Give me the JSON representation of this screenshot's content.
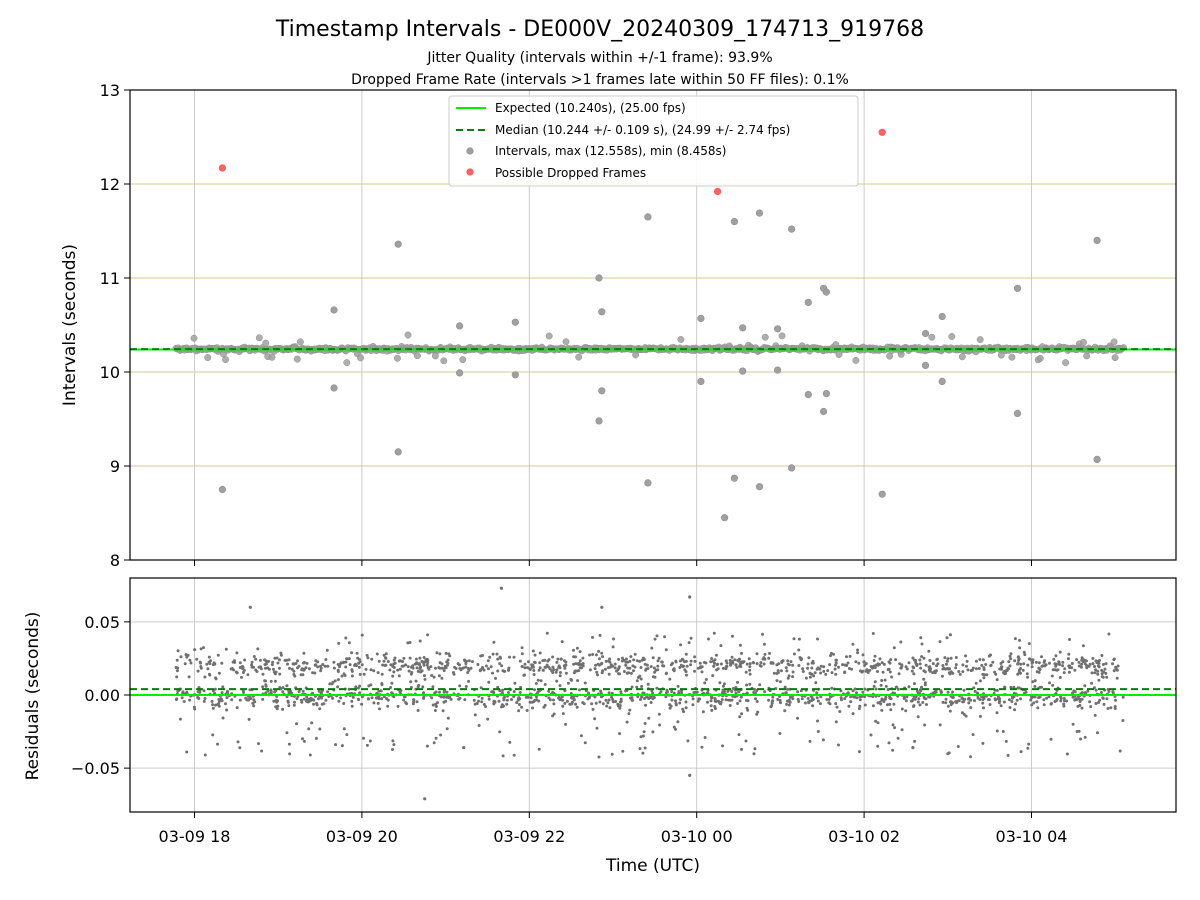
{
  "figure": {
    "title": "Timestamp Intervals - DE000V_20240309_174713_919768",
    "subtitle_1": "Jitter Quality (intervals within +/-1 frame): 93.9%",
    "subtitle_2": "Dropped Frame Rate (intervals >1 frames late within 50 FF files): 0.1%"
  },
  "colors": {
    "expected": "#00ee00",
    "median": "#008000",
    "intervals": "#a0a0a0",
    "dropped": "#ff4d4d",
    "residuals": "#707070",
    "grid_top": "#d8c98a",
    "grid_bottom": "#cccccc"
  },
  "chart_data": [
    {
      "type": "scatter",
      "panel": "intervals",
      "ylabel": "Intervals (seconds)",
      "ylim": [
        8,
        13
      ],
      "yticks": [
        "8",
        "9",
        "10",
        "11",
        "12",
        "13"
      ],
      "grid": true,
      "legend_position": "top-center",
      "legend": {
        "expected": "Expected (10.240s), (25.00 fps)",
        "median": "Median (10.244 +/- 0.109 s), (24.99 +/- 2.74 fps)",
        "intervals": "Intervals, max (12.558s), min (8.458s)",
        "dropped": "Possible Dropped Frames"
      },
      "expected_value": 10.24,
      "median_value": 10.244,
      "x_range_hours": [
        17.78,
        29.1
      ],
      "outliers": [
        {
          "x": "03-09 18:20",
          "y": 8.75
        },
        {
          "x": "03-09 19:40",
          "y": 10.66
        },
        {
          "x": "03-09 19:40",
          "y": 9.83
        },
        {
          "x": "03-09 20:26",
          "y": 11.36
        },
        {
          "x": "03-09 20:26",
          "y": 9.15
        },
        {
          "x": "03-09 21:10",
          "y": 10.49
        },
        {
          "x": "03-09 21:10",
          "y": 9.99
        },
        {
          "x": "03-09 21:50",
          "y": 10.53
        },
        {
          "x": "03-09 21:50",
          "y": 9.97
        },
        {
          "x": "03-09 22:50",
          "y": 11.0
        },
        {
          "x": "03-09 22:50",
          "y": 9.48
        },
        {
          "x": "03-09 22:52",
          "y": 10.64
        },
        {
          "x": "03-09 22:52",
          "y": 9.8
        },
        {
          "x": "03-09 23:25",
          "y": 11.65
        },
        {
          "x": "03-09 23:25",
          "y": 8.82
        },
        {
          "x": "03-10 00:03",
          "y": 10.57
        },
        {
          "x": "03-10 00:03",
          "y": 9.9
        },
        {
          "x": "03-10 00:20",
          "y": 8.45
        },
        {
          "x": "03-10 00:27",
          "y": 11.6
        },
        {
          "x": "03-10 00:27",
          "y": 8.87
        },
        {
          "x": "03-10 00:33",
          "y": 10.47
        },
        {
          "x": "03-10 00:33",
          "y": 10.01
        },
        {
          "x": "03-10 00:45",
          "y": 11.69
        },
        {
          "x": "03-10 00:45",
          "y": 8.78
        },
        {
          "x": "03-10 00:58",
          "y": 10.46
        },
        {
          "x": "03-10 00:58",
          "y": 10.02
        },
        {
          "x": "03-10 01:08",
          "y": 11.52
        },
        {
          "x": "03-10 01:08",
          "y": 8.98
        },
        {
          "x": "03-10 01:20",
          "y": 10.74
        },
        {
          "x": "03-10 01:20",
          "y": 9.76
        },
        {
          "x": "03-10 01:31",
          "y": 10.89
        },
        {
          "x": "03-10 01:31",
          "y": 9.58
        },
        {
          "x": "03-10 01:33",
          "y": 10.85
        },
        {
          "x": "03-10 01:33",
          "y": 9.77
        },
        {
          "x": "03-10 02:13",
          "y": 8.7
        },
        {
          "x": "03-10 02:44",
          "y": 10.41
        },
        {
          "x": "03-10 02:44",
          "y": 10.07
        },
        {
          "x": "03-10 02:56",
          "y": 10.59
        },
        {
          "x": "03-10 02:56",
          "y": 9.9
        },
        {
          "x": "03-10 03:50",
          "y": 10.89
        },
        {
          "x": "03-10 03:50",
          "y": 9.56
        },
        {
          "x": "03-10 04:47",
          "y": 11.4
        },
        {
          "x": "03-10 04:47",
          "y": 9.07
        }
      ],
      "dropped_frames": [
        {
          "x": "03-09 18:20",
          "y": 12.17
        },
        {
          "x": "03-10 00:15",
          "y": 11.92
        },
        {
          "x": "03-10 02:13",
          "y": 12.55
        }
      ]
    },
    {
      "type": "scatter",
      "panel": "residuals",
      "xlabel": "Time (UTC)",
      "ylabel": "Residuals (seconds)",
      "ylim": [
        -0.08,
        0.08
      ],
      "yticks": [
        "−0.05",
        "0.00",
        "0.05"
      ],
      "xticks": [
        "03-09 18",
        "03-09 20",
        "03-09 22",
        "03-10 00",
        "03-10 02",
        "03-10 04"
      ],
      "grid": true,
      "expected_residual": 0.0,
      "median_residual": 0.004,
      "residual_range": [
        -0.071,
        0.073
      ],
      "outliers": [
        {
          "x": "03-09 21:40",
          "y": 0.073
        },
        {
          "x": "03-09 21:13",
          "y": -0.036
        },
        {
          "x": "03-09 20:45",
          "y": -0.071
        },
        {
          "x": "03-09 22:52",
          "y": 0.06
        },
        {
          "x": "03-09 23:55",
          "y": 0.067
        },
        {
          "x": "03-09 23:55",
          "y": -0.055
        },
        {
          "x": "03-09 18:40",
          "y": 0.06
        },
        {
          "x": "03-10 02:35",
          "y": -0.036
        }
      ]
    }
  ]
}
